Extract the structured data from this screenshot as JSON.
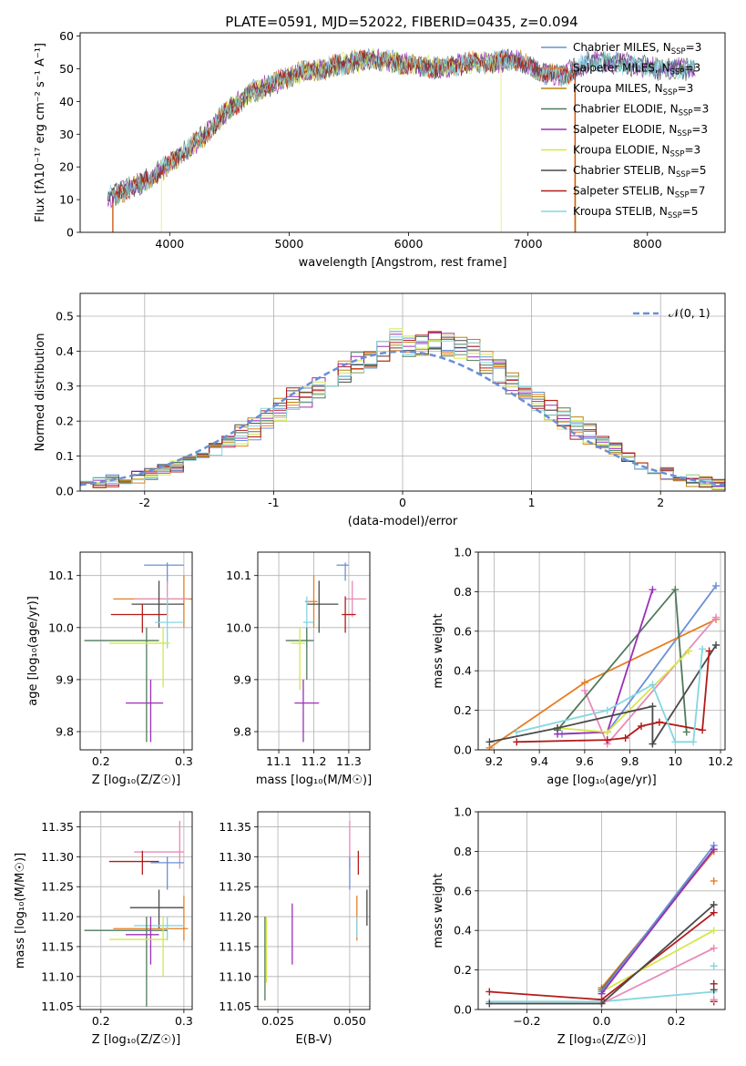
{
  "figure_title": "PLATE=0591, MJD=52022, FIBERID=0435, z=0.094",
  "colors": {
    "Chabrier MILES": "#6a8fd6",
    "Salpeter MILES": "#e67e22",
    "Kroupa MILES": "#b8860b",
    "Chabrier ELODIE": "#4f7a5a",
    "Salpeter ELODIE": "#9b30b8",
    "Kroupa ELODIE": "#d4e84a",
    "Chabrier STELIB": "#4a4a4a",
    "Salpeter STELIB": "#b31b1b",
    "Kroupa STELIB": "#85d6e0",
    "pink": "#e88ab8"
  },
  "chart_data": [
    {
      "id": "spectrum",
      "type": "line",
      "xlabel": "wavelength [Angstrom, rest frame]",
      "ylabel": "Flux [f$_\\lambda$10$^{-17}$ erg cm$^{-2}$ s$^{-1}$ A$^{-1}$]",
      "ylabel_display": "Flux [fλ10⁻¹⁷ erg cm⁻² s⁻¹ A⁻¹]",
      "xlim": [
        3250,
        8650
      ],
      "ylim": [
        0,
        61
      ],
      "xticks": [
        4000,
        5000,
        6000,
        7000,
        8000
      ],
      "yticks": [
        0,
        10,
        20,
        30,
        40,
        50,
        60
      ],
      "legend_loc": "right",
      "legend": [
        {
          "label": "Chabrier MILES, N$_{SSP}$=3",
          "color": "#6a8fd6"
        },
        {
          "label": "Salpeter MILES, N$_{SSP}$=3",
          "color": "#e67e22"
        },
        {
          "label": "Kroupa MILES, N$_{SSP}$=3",
          "color": "#b8860b"
        },
        {
          "label": "Chabrier ELODIE, N$_{SSP}$=3",
          "color": "#4f7a5a"
        },
        {
          "label": "Salpeter ELODIE, N$_{SSP}$=3",
          "color": "#9b30b8"
        },
        {
          "label": "Kroupa ELODIE, N$_{SSP}$=3",
          "color": "#d4e84a"
        },
        {
          "label": "Chabrier STELIB, N$_{SSP}$=5",
          "color": "#4a4a4a"
        },
        {
          "label": "Salpeter STELIB, N$_{SSP}$=7",
          "color": "#b31b1b"
        },
        {
          "label": "Kroupa STELIB, N$_{SSP}$=5",
          "color": "#85d6e0"
        }
      ],
      "continuum_x": [
        3500,
        3700,
        3900,
        4100,
        4300,
        4500,
        4700,
        4900,
        5100,
        5300,
        5500,
        5700,
        5900,
        6100,
        6300,
        6500,
        6700,
        6900,
        7100,
        7300,
        7500,
        7700,
        7900,
        8100,
        8300
      ],
      "continuum_y": [
        11,
        14,
        18,
        24,
        30,
        38,
        43,
        46,
        49,
        50,
        52,
        53,
        52,
        51,
        50,
        52,
        52,
        53,
        49,
        48,
        52,
        52,
        51,
        50,
        50
      ],
      "cutoffs": [
        {
          "color": "#e67e22",
          "start": 3520,
          "end": 7390
        },
        {
          "color": "#d4e84a",
          "start": 3930,
          "end": 6775
        },
        {
          "color": "#b31b1b",
          "start": 3525,
          "end": 7395
        },
        {
          "color": "#b8860b",
          "start": 3525,
          "end": 7400
        }
      ]
    },
    {
      "id": "residuals",
      "type": "bar",
      "xlabel": "(data-model)/error",
      "ylabel": "Normed distribution",
      "xlim": [
        -2.5,
        2.5
      ],
      "ylim": [
        0,
        0.565
      ],
      "xticks": [
        -2,
        -1,
        0,
        1,
        2
      ],
      "yticks": [
        0.0,
        0.1,
        0.2,
        0.3,
        0.4,
        0.5
      ],
      "legend_loc": "upper right",
      "legend": [
        {
          "label": "$\\mathcal{N}(0,1)$",
          "label_display": "𝒩(0, 1)",
          "color": "#6a8fd6"
        }
      ],
      "bin_width": 0.1,
      "bins_start": -2.5,
      "base_values": [
        0.03,
        0.025,
        0.03,
        0.035,
        0.04,
        0.05,
        0.06,
        0.07,
        0.085,
        0.1,
        0.12,
        0.14,
        0.16,
        0.18,
        0.21,
        0.23,
        0.26,
        0.27,
        0.3,
        0.32,
        0.34,
        0.37,
        0.38,
        0.4,
        0.43,
        0.41,
        0.42,
        0.44,
        0.42,
        0.41,
        0.4,
        0.37,
        0.34,
        0.31,
        0.29,
        0.26,
        0.23,
        0.21,
        0.18,
        0.16,
        0.14,
        0.12,
        0.1,
        0.08,
        0.065,
        0.05,
        0.04,
        0.03,
        0.025,
        0.02
      ]
    },
    {
      "id": "age_vs_Z",
      "type": "scatter",
      "xlabel": "Z [log$_{10}$(Z/Z$_\\odot$)]",
      "xlabel_display": "Z [log₁₀(Z/Z☉)]",
      "ylabel": "age  [log$_{10}$(age/yr)]",
      "ylabel_display": "age  [log₁₀(age/yr)]",
      "xlim": [
        0.175,
        0.31
      ],
      "ylim": [
        9.765,
        10.145
      ],
      "xticks": [
        0.2,
        0.3
      ],
      "yticks": [
        9.8,
        9.9,
        10.0,
        10.1
      ],
      "points": [
        {
          "color": "#6a8fd6",
          "x": 0.28,
          "xerr": [
            0.252,
            0.3
          ],
          "y": 10.12,
          "yerr": [
            10.085,
            10.125
          ]
        },
        {
          "color": "#e67e22",
          "x": 0.3,
          "xerr": [
            0.215,
            0.31
          ],
          "y": 10.055,
          "yerr": [
            10.0,
            10.1
          ]
        },
        {
          "color": "#e88ab8",
          "x": 0.28,
          "xerr": [
            0.24,
            0.305
          ],
          "y": 10.055,
          "yerr": [
            10.02,
            10.09
          ]
        },
        {
          "color": "#4a4a4a",
          "x": 0.27,
          "xerr": [
            0.237,
            0.3
          ],
          "y": 10.045,
          "yerr": [
            10.0,
            10.09
          ]
        },
        {
          "color": "#b31b1b",
          "x": 0.25,
          "xerr": [
            0.212,
            0.28
          ],
          "y": 10.025,
          "yerr": [
            9.99,
            10.045
          ]
        },
        {
          "color": "#85d6e0",
          "x": 0.28,
          "xerr": [
            0.265,
            0.3
          ],
          "y": 10.01,
          "yerr": [
            9.96,
            10.06
          ]
        },
        {
          "color": "#4f7a5a",
          "x": 0.255,
          "xerr": [
            0.18,
            0.27
          ],
          "y": 9.975,
          "yerr": [
            9.78,
            10.0
          ]
        },
        {
          "color": "#d4e84a",
          "x": 0.275,
          "xerr": [
            0.21,
            0.283
          ],
          "y": 9.97,
          "yerr": [
            9.885,
            10.0
          ]
        },
        {
          "color": "#9b30b8",
          "x": 0.26,
          "xerr": [
            0.23,
            0.275
          ],
          "y": 9.855,
          "yerr": [
            9.78,
            9.9
          ]
        }
      ]
    },
    {
      "id": "age_vs_mass",
      "type": "scatter",
      "xlabel": "mass [log$_{10}$(M/M$_\\odot$)]",
      "xlabel_display": "mass [log₁₀(M/M☉)]",
      "ylabel": "",
      "xlim": [
        11.04,
        11.36
      ],
      "ylim": [
        9.765,
        10.145
      ],
      "xticks": [
        11.1,
        11.2,
        11.3
      ],
      "yticks": [
        9.8,
        9.9,
        10.0,
        10.1
      ],
      "points": [
        {
          "color": "#6a8fd6",
          "x": 11.29,
          "xerr": [
            11.265,
            11.3
          ],
          "y": 10.12,
          "yerr": [
            10.09,
            10.125
          ]
        },
        {
          "color": "#e67e22",
          "x": 11.2,
          "xerr": [
            11.175,
            11.21
          ],
          "y": 10.05,
          "yerr": [
            10.0,
            10.1
          ]
        },
        {
          "color": "#e88ab8",
          "x": 11.31,
          "xerr": [
            11.29,
            11.35
          ],
          "y": 10.055,
          "yerr": [
            10.02,
            10.09
          ]
        },
        {
          "color": "#4a4a4a",
          "x": 11.215,
          "xerr": [
            11.18,
            11.27
          ],
          "y": 10.045,
          "yerr": [
            9.99,
            10.09
          ]
        },
        {
          "color": "#b31b1b",
          "x": 11.29,
          "xerr": [
            11.28,
            11.32
          ],
          "y": 10.025,
          "yerr": [
            9.99,
            10.06
          ]
        },
        {
          "color": "#85d6e0",
          "x": 11.18,
          "xerr": [
            11.17,
            11.2
          ],
          "y": 10.01,
          "yerr": [
            9.96,
            10.06
          ]
        },
        {
          "color": "#4f7a5a",
          "x": 11.18,
          "xerr": [
            11.12,
            11.2
          ],
          "y": 9.975,
          "yerr": [
            9.9,
            10.0
          ]
        },
        {
          "color": "#d4e84a",
          "x": 11.16,
          "xerr": [
            11.135,
            11.175
          ],
          "y": 9.97,
          "yerr": [
            9.88,
            10.0
          ]
        },
        {
          "color": "#9b30b8",
          "x": 11.17,
          "xerr": [
            11.145,
            11.215
          ],
          "y": 9.855,
          "yerr": [
            9.78,
            9.9
          ]
        }
      ]
    },
    {
      "id": "weight_vs_age",
      "type": "line",
      "xlabel": "age  [log$_{10}$(age/yr)]",
      "xlabel_display": "age  [log₁₀(age/yr)]",
      "ylabel": "mass weight",
      "xlim": [
        9.13,
        10.22
      ],
      "ylim": [
        0,
        1.0
      ],
      "xticks": [
        9.2,
        9.4,
        9.6,
        9.8,
        10.0,
        10.2
      ],
      "yticks": [
        0.0,
        0.2,
        0.4,
        0.6,
        0.8,
        1.0
      ],
      "series": [
        {
          "color": "#6a8fd6",
          "x": [
            9.5,
            9.7,
            10.18
          ],
          "y": [
            0.08,
            0.09,
            0.83
          ]
        },
        {
          "color": "#e67e22",
          "x": [
            9.18,
            9.6,
            10.18
          ],
          "y": [
            0.01,
            0.34,
            0.66
          ]
        },
        {
          "color": "#e88ab8",
          "x": [
            9.6,
            9.7,
            10.18
          ],
          "y": [
            0.3,
            0.03,
            0.67
          ]
        },
        {
          "color": "#4f7a5a",
          "x": [
            9.48,
            10.0,
            10.05
          ],
          "y": [
            0.1,
            0.81,
            0.09
          ]
        },
        {
          "color": "#9b30b8",
          "x": [
            9.48,
            9.7,
            9.9
          ],
          "y": [
            0.08,
            0.09,
            0.81
          ]
        },
        {
          "color": "#d4e84a",
          "x": [
            9.48,
            9.7,
            10.06
          ],
          "y": [
            0.11,
            0.09,
            0.5
          ]
        },
        {
          "color": "#4a4a4a",
          "x": [
            9.18,
            9.48,
            9.9,
            9.9,
            10.18
          ],
          "y": [
            0.04,
            0.11,
            0.22,
            0.03,
            0.53
          ]
        },
        {
          "color": "#b31b1b",
          "x": [
            9.3,
            9.7,
            9.78,
            9.85,
            9.93,
            10.12,
            10.15
          ],
          "y": [
            0.04,
            0.05,
            0.06,
            0.12,
            0.14,
            0.1,
            0.5
          ]
        },
        {
          "color": "#85d6e0",
          "x": [
            9.3,
            9.7,
            9.9,
            10.0,
            10.08,
            10.12
          ],
          "y": [
            0.09,
            0.2,
            0.33,
            0.04,
            0.04,
            0.51
          ]
        }
      ]
    },
    {
      "id": "mass_vs_Z",
      "type": "scatter",
      "xlabel": "Z [log$_{10}$(Z/Z$_\\odot$)]",
      "xlabel_display": "Z [log₁₀(Z/Z☉)]",
      "ylabel": "mass [log$_{10}$(M/M$_\\odot$)]",
      "ylabel_display": "mass [log₁₀(M/M☉)]",
      "xlim": [
        0.175,
        0.31
      ],
      "ylim": [
        11.045,
        11.375
      ],
      "xticks": [
        0.2,
        0.3
      ],
      "yticks": [
        11.05,
        11.1,
        11.15,
        11.2,
        11.25,
        11.3,
        11.35
      ],
      "points": [
        {
          "color": "#e88ab8",
          "x": 0.295,
          "xerr": [
            0.24,
            0.3
          ],
          "y": 11.308,
          "yerr": [
            11.28,
            11.36
          ]
        },
        {
          "color": "#b31b1b",
          "x": 0.25,
          "xerr": [
            0.21,
            0.27
          ],
          "y": 11.292,
          "yerr": [
            11.27,
            11.31
          ]
        },
        {
          "color": "#6a8fd6",
          "x": 0.28,
          "xerr": [
            0.26,
            0.3
          ],
          "y": 11.29,
          "yerr": [
            11.245,
            11.3
          ]
        },
        {
          "color": "#4a4a4a",
          "x": 0.27,
          "xerr": [
            0.235,
            0.3
          ],
          "y": 11.215,
          "yerr": [
            11.18,
            11.245
          ]
        },
        {
          "color": "#e67e22",
          "x": 0.3,
          "xerr": [
            0.215,
            0.305
          ],
          "y": 11.18,
          "yerr": [
            11.16,
            11.235
          ]
        },
        {
          "color": "#85d6e0",
          "x": 0.28,
          "xerr": [
            0.24,
            0.3
          ],
          "y": 11.185,
          "yerr": [
            11.16,
            11.2
          ]
        },
        {
          "color": "#4f7a5a",
          "x": 0.255,
          "xerr": [
            0.18,
            0.28
          ],
          "y": 11.177,
          "yerr": [
            11.05,
            11.2
          ]
        },
        {
          "color": "#9b30b8",
          "x": 0.26,
          "xerr": [
            0.23,
            0.27
          ],
          "y": 11.17,
          "yerr": [
            11.12,
            11.2
          ]
        },
        {
          "color": "#d4e84a",
          "x": 0.275,
          "xerr": [
            0.21,
            0.28
          ],
          "y": 11.162,
          "yerr": [
            11.1,
            11.2
          ]
        }
      ]
    },
    {
      "id": "mass_vs_ebv",
      "type": "scatter",
      "xlabel": "E(B-V)",
      "ylabel": "",
      "xlim": [
        0.018,
        0.057
      ],
      "ylim": [
        11.045,
        11.375
      ],
      "xticks": [
        0.025,
        0.05
      ],
      "xticklabels": [
        "0.025",
        "0.050"
      ],
      "yticks": [
        11.05,
        11.1,
        11.15,
        11.2,
        11.25,
        11.3,
        11.35
      ],
      "points": [
        {
          "color": "#e88ab8",
          "x": 0.05,
          "y": 11.32,
          "yerr": [
            11.28,
            11.36
          ]
        },
        {
          "color": "#b31b1b",
          "x": 0.053,
          "y": 11.29,
          "yerr": [
            11.27,
            11.31
          ]
        },
        {
          "color": "#6a8fd6",
          "x": 0.05,
          "y": 11.26,
          "yerr": [
            11.245,
            11.3
          ]
        },
        {
          "color": "#4a4a4a",
          "x": 0.056,
          "y": 11.215,
          "yerr": [
            11.185,
            11.245
          ]
        },
        {
          "color": "#e67e22",
          "x": 0.0525,
          "y": 11.2,
          "yerr": [
            11.16,
            11.235
          ]
        },
        {
          "color": "#85d6e0",
          "x": 0.0525,
          "y": 11.185,
          "yerr": [
            11.165,
            11.2
          ]
        },
        {
          "color": "#9b30b8",
          "x": 0.03,
          "y": 11.17,
          "yerr": [
            11.12,
            11.222
          ]
        },
        {
          "color": "#d4e84a",
          "x": 0.021,
          "y": 11.14,
          "yerr": [
            11.09,
            11.2
          ]
        },
        {
          "color": "#4f7a5a",
          "x": 0.0205,
          "y": 11.1,
          "yerr": [
            11.06,
            11.2
          ]
        }
      ]
    },
    {
      "id": "weight_vs_Z",
      "type": "line",
      "xlabel": "Z [log$_{10}$(Z/Z$_\\odot$)]",
      "xlabel_display": "Z [log₁₀(Z/Z☉)]",
      "ylabel": "mass weight",
      "xlim": [
        -0.33,
        0.33
      ],
      "ylim": [
        0,
        1.0
      ],
      "xticks": [
        -0.2,
        0.0,
        0.2
      ],
      "xticklabels": [
        "−0.2",
        "0.0",
        "0.2"
      ],
      "yticks": [
        0.0,
        0.2,
        0.4,
        0.6,
        0.8,
        1.0
      ],
      "series": [
        {
          "color": "#85d6e0",
          "x": [
            -0.3,
            0.0,
            0.3
          ],
          "y": [
            0.04,
            0.04,
            0.09
          ]
        },
        {
          "color": "#e88ab8",
          "x": [
            0.0,
            0.3
          ],
          "y": [
            0.03,
            0.31
          ]
        },
        {
          "color": "#d4e84a",
          "x": [
            0.0,
            0.3
          ],
          "y": [
            0.09,
            0.4
          ]
        },
        {
          "color": "#b31b1b",
          "x": [
            -0.3,
            0.0,
            0.3
          ],
          "y": [
            0.09,
            0.05,
            0.49
          ]
        },
        {
          "color": "#4a4a4a",
          "x": [
            -0.3,
            0.0,
            0.3
          ],
          "y": [
            0.03,
            0.03,
            0.53
          ]
        },
        {
          "color": "#e67e22",
          "x": [
            0.0,
            0.3
          ],
          "y": [
            0.11,
            0.8
          ]
        },
        {
          "color": "#4f7a5a",
          "x": [
            0.0,
            0.3
          ],
          "y": [
            0.1,
            0.81
          ]
        },
        {
          "color": "#6a8fd6",
          "x": [
            0.0,
            0.3
          ],
          "y": [
            0.09,
            0.83
          ]
        },
        {
          "color": "#9b30b8",
          "x": [
            0.0,
            0.3
          ],
          "y": [
            0.08,
            0.81
          ]
        }
      ],
      "extra_markers": [
        {
          "color": "#85d6e0",
          "x": 0.3,
          "y": [
            0.22,
            0.13,
            0.05
          ]
        },
        {
          "color": "#b31b1b",
          "x": 0.3,
          "y": [
            0.04,
            0.13
          ]
        },
        {
          "color": "#e67e22",
          "x": 0.3,
          "y": [
            0.65
          ]
        },
        {
          "color": "#4a4a4a",
          "x": 0.3,
          "y": [
            0.1
          ]
        },
        {
          "color": "#e88ab8",
          "x": 0.3,
          "y": [
            0.05
          ]
        }
      ]
    }
  ]
}
